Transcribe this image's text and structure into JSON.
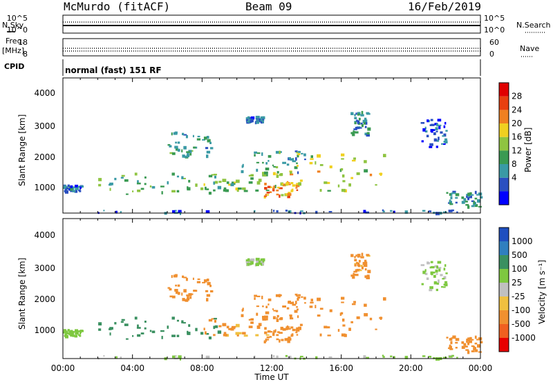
{
  "header": {
    "site": "McMurdo (fitACF)",
    "beam": "Beam 09",
    "date": "16/Feb/2019"
  },
  "top_panels": {
    "noise_left_label": "N.Sky",
    "noise_left_ticks": [
      "10^5",
      "10^0"
    ],
    "noise_right_label": "N.Search",
    "noise_right_ticks": [
      "10^5",
      "10^0"
    ],
    "freq_label_line1": "Freq.",
    "freq_label_line2": "[MHz]",
    "freq_left_ticks": [
      "18",
      "8"
    ],
    "nave_label": "Nave",
    "nave_right_ticks": [
      "60",
      "0"
    ],
    "cpid_label": "CPID",
    "cpid_text": "normal (fast) 151 RF"
  },
  "x_axis": {
    "label": "Time UT",
    "ticks": [
      "00:00",
      "04:00",
      "08:00",
      "12:00",
      "16:00",
      "20:00",
      "00:00"
    ]
  },
  "power_panel": {
    "ylabel": "Slant Range [km]",
    "yticks": [
      "4000",
      "3000",
      "2000",
      "1000"
    ],
    "colorbar_label": "Power [dB]",
    "colorbar_ticks": [
      "28",
      "24",
      "20",
      "16",
      "12",
      "8",
      "4"
    ],
    "colors": [
      "#0000ff",
      "#2a4fc0",
      "#3a9aa5",
      "#3a9a52",
      "#8fc441",
      "#f0d020",
      "#f08020",
      "#e84010",
      "#e00000"
    ]
  },
  "velocity_panel": {
    "ylabel": "Slant Range [km]",
    "yticks": [
      "4000",
      "3000",
      "2000",
      "1000"
    ],
    "colorbar_label": "Velocity [m s⁻¹]",
    "colorbar_ticks": [
      "1000",
      "500",
      "100",
      "25",
      "-25",
      "-100",
      "-500",
      "-1000"
    ],
    "colors": [
      "#1f4fbf",
      "#2f7fbf",
      "#3a9060",
      "#7ec840",
      "#c0c0c0",
      "#f0c040",
      "#f09030",
      "#f06020",
      "#e80000"
    ]
  },
  "chart_data": {
    "type": "heatmap",
    "x_range_hours": [
      0,
      24
    ],
    "y_range_km": [
      180,
      4500
    ],
    "echo_regions": [
      {
        "t_start": 0.0,
        "t_end": 24.0,
        "range_low": 200,
        "range_high": 300,
        "power_db": 6,
        "velocity_ms": 30
      },
      {
        "t_start": 0.0,
        "t_end": 1.0,
        "range_low": 900,
        "range_high": 1100,
        "power_db": 8,
        "velocity_ms": 60
      },
      {
        "t_start": 2.0,
        "t_end": 9.0,
        "range_low": 800,
        "range_high": 1500,
        "power_db": 14,
        "velocity_ms": 200
      },
      {
        "t_start": 6.0,
        "t_end": 8.5,
        "range_low": 2000,
        "range_high": 2800,
        "power_db": 12,
        "velocity_ms": -200
      },
      {
        "t_start": 8.0,
        "t_end": 13.0,
        "range_low": 900,
        "range_high": 1500,
        "power_db": 16,
        "velocity_ms": -150
      },
      {
        "t_start": 10.0,
        "t_end": 14.0,
        "range_low": 1500,
        "range_high": 2200,
        "power_db": 12,
        "velocity_ms": -200
      },
      {
        "t_start": 11.5,
        "t_end": 13.5,
        "range_low": 700,
        "range_high": 1200,
        "power_db": 24,
        "velocity_ms": -200
      },
      {
        "t_start": 13.0,
        "t_end": 18.5,
        "range_low": 900,
        "range_high": 2100,
        "power_db": 20,
        "velocity_ms": -250
      },
      {
        "t_start": 10.5,
        "t_end": 11.5,
        "range_low": 3100,
        "range_high": 3300,
        "power_db": 8,
        "velocity_ms": 30
      },
      {
        "t_start": 16.5,
        "t_end": 17.5,
        "range_low": 2700,
        "range_high": 3500,
        "power_db": 10,
        "velocity_ms": -150
      },
      {
        "t_start": 20.5,
        "t_end": 22.0,
        "range_low": 2300,
        "range_high": 3200,
        "power_db": 6,
        "velocity_ms": 30
      },
      {
        "t_start": 22.0,
        "t_end": 24.0,
        "range_low": 400,
        "range_high": 900,
        "power_db": 10,
        "velocity_ms": -250
      }
    ]
  }
}
